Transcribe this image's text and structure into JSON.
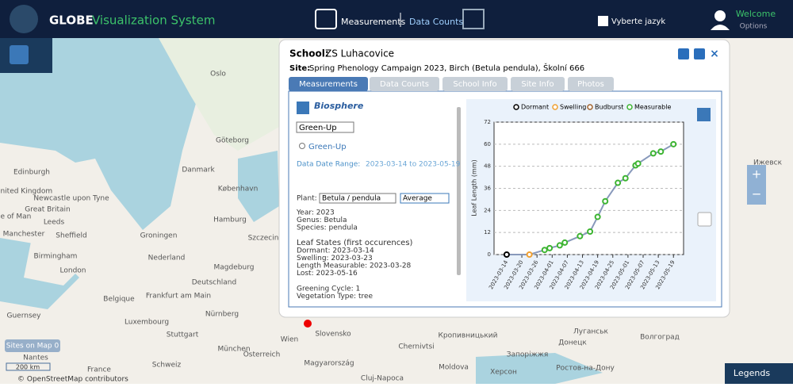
{
  "header": {
    "brand": "GLOBE",
    "subtitle": "Visualization System",
    "nav": [
      "Measurements",
      "Data Counts"
    ],
    "language": "Vyberte jazyk",
    "welcome": "Welcome",
    "options": "Options"
  },
  "popup": {
    "school_label": "School:",
    "school": "ZS Luhacovice",
    "site_label": "Site:",
    "site": "Spring Phenology Campaign 2023, Birch (Betula pendula), Školní 666",
    "tabs": [
      "Measurements",
      "Data Counts",
      "School Info",
      "Site Info",
      "Photos"
    ],
    "protocol": "Biosphere",
    "select": "Green-Up",
    "radio": "Green-Up",
    "range_label": "Data Date Range:",
    "range": "2023-03-14 to 2023-05-19",
    "plant_label": "Plant:",
    "plant": "Betula / pendula",
    "statistic": "Average",
    "details": [
      "Year: 2023",
      "Genus: Betula",
      "Species: pendula"
    ],
    "states_title": "Leaf States (first occurences)",
    "states": [
      "Dormant: 2023-03-14",
      "Swelling: 2023-03-23",
      "Length Measurable: 2023-03-28",
      "Lost: 2023-05-16"
    ],
    "cycle": [
      "Greening Cycle: 1",
      "Vegetation Type: tree"
    ]
  },
  "chart": {
    "type": "line",
    "y_label": "Leaf Length (mm)",
    "x": [
      "2023-03-14",
      "2023-03-23",
      "2023-03-29",
      "2023-03-31",
      "2023-04-04",
      "2023-04-06",
      "2023-04-12",
      "2023-04-16",
      "2023-04-19",
      "2023-04-22",
      "2023-04-27",
      "2023-04-30",
      "2023-05-04",
      "2023-05-05",
      "2023-05-11",
      "2023-05-14",
      "2023-05-19"
    ],
    "series": [
      {
        "name": "Dormant",
        "color": "#000000",
        "values": [
          0,
          null,
          null,
          null,
          null,
          null,
          null,
          null,
          null,
          null,
          null,
          null,
          null,
          null,
          null,
          null,
          null
        ]
      },
      {
        "name": "Swelling",
        "color": "#f0a030",
        "values": [
          null,
          0,
          null,
          null,
          null,
          null,
          null,
          null,
          null,
          null,
          null,
          null,
          null,
          null,
          null,
          null,
          null
        ]
      },
      {
        "name": "Budburst",
        "color": "#a0622d",
        "values": [
          null,
          null,
          null,
          null,
          null,
          null,
          null,
          null,
          null,
          null,
          null,
          null,
          null,
          null,
          null,
          null,
          null
        ]
      },
      {
        "name": "Measurable",
        "color": "#3cb431",
        "values": [
          null,
          null,
          2.5,
          3.5,
          5,
          6.5,
          10,
          12.5,
          20.5,
          29,
          39,
          41.5,
          48.5,
          49.5,
          55,
          56,
          60
        ]
      }
    ],
    "line_color": "#8899bb",
    "xlim": [
      "2023-03-09",
      "2023-05-23"
    ],
    "xticks": [
      "2023-03-14",
      "2023-03-20",
      "2023-03-26",
      "2023-04-01",
      "2023-04-07",
      "2023-04-13",
      "2023-04-19",
      "2023-04-25",
      "2023-05-01",
      "2023-05-07",
      "2023-05-13",
      "2023-05-19"
    ],
    "ylim": [
      0,
      72
    ],
    "yticks": [
      0,
      12,
      24,
      36,
      48,
      60,
      72
    ],
    "grid": true
  },
  "map": {
    "labels": [
      "Oslo",
      "Göteborg",
      "Danmark",
      "København",
      "Edinburgh",
      "United Kingdom",
      "Newcastle upon Tyne",
      "Great Britain",
      "Isle of Man",
      "Leeds",
      "Manchester",
      "Sheffield",
      "Birmingham",
      "London",
      "Groningen",
      "Hamburg",
      "Szczecin",
      "Nederland",
      "Magdeburg",
      "Deutschland",
      "Belgique",
      "Frankfurt am Main",
      "Luxembourg",
      "Nürnberg",
      "Guernsey",
      "Stuttgart",
      "München",
      "Wien",
      "Slovensko",
      "Österreich",
      "Schweiz",
      "Magyarország",
      "France",
      "Nantes",
      "Cluj-Napoca",
      "Moldova",
      "Chernivtsi",
      "Кропивницький",
      "Луганськ",
      "Донецк",
      "Волгоград",
      "Ижевск",
      "Запоріжжя",
      "Херсон",
      "Ростов-на-Дону"
    ],
    "zoom": [
      "+",
      "−"
    ],
    "sites": "Sites on Map 0",
    "scale": "200 km",
    "attribution": "© OpenStreetMap contributors",
    "legends": "Legends"
  }
}
